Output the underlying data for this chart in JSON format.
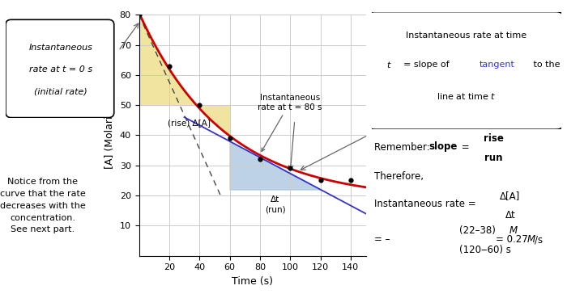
{
  "xlabel": "Time (s)",
  "ylabel": "[A] (Molarity)",
  "xlim": [
    0,
    150
  ],
  "ylim": [
    0,
    80
  ],
  "xticks": [
    20,
    40,
    60,
    80,
    100,
    120,
    140
  ],
  "yticks": [
    10,
    20,
    30,
    40,
    50,
    60,
    70,
    80
  ],
  "curve_color": "#cc0000",
  "tangent_color": "#3333cc",
  "dashed_color": "#444444",
  "data_points_x": [
    0,
    20,
    40,
    60,
    80,
    100,
    120,
    140
  ],
  "data_points_y": [
    80,
    63,
    50,
    39,
    32,
    29,
    25,
    25
  ],
  "yellow_color": "#f0e4a0",
  "blue_color": "#a8c4e0",
  "tangent80_x1": 60,
  "tangent80_y1": 38,
  "tangent80_x2": 120,
  "tangent80_y2": 22,
  "blue_bottom_y": 22,
  "yellow_bottom_y": 50,
  "background": "#ffffff",
  "grid_color": "#cccccc",
  "left_box_lines": [
    "Instantaneous",
    "rate at t = 0 s",
    "(initial rate)"
  ],
  "bottom_left_text": "Notice from the\ncurve that the rate\ndecreases with the\nconcentration.\nSee next part.",
  "inst_label": "Instantaneous\nrate at t = 80 s",
  "rise_label": "(rise) Δ[A]",
  "run_label": "Δt\n(run)"
}
